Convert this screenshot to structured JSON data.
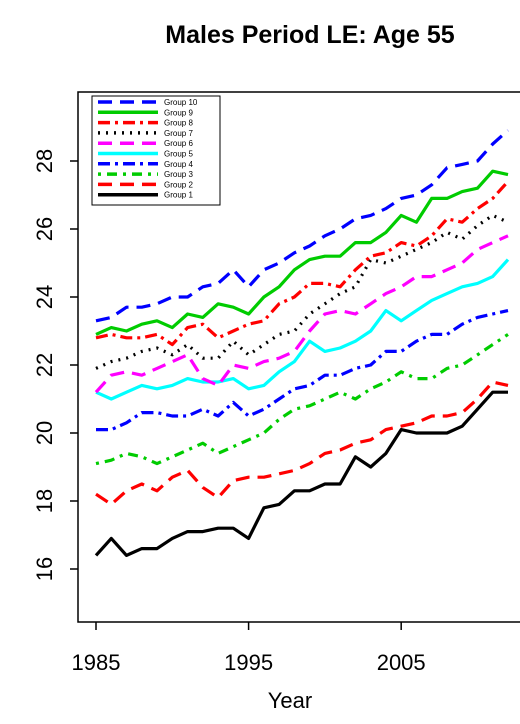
{
  "chart_data": {
    "type": "line",
    "title": "Males Period LE: Age 55",
    "xlabel": "Year",
    "ylabel": "",
    "xlim": [
      1984,
      2012
    ],
    "ylim": [
      14.7,
      29.5
    ],
    "x_ticks": [
      1985,
      1995,
      2005
    ],
    "y_ticks": [
      16,
      18,
      20,
      22,
      24,
      26,
      28
    ],
    "grid": false,
    "legend_position": "top-left",
    "x": [
      1985,
      1986,
      1987,
      1988,
      1989,
      1990,
      1991,
      1992,
      1993,
      1994,
      1995,
      1996,
      1997,
      1998,
      1999,
      2000,
      2001,
      2002,
      2003,
      2004,
      2005,
      2006,
      2007,
      2008,
      2009,
      2010,
      2011,
      2012
    ],
    "series": [
      {
        "name": "Group 10",
        "color": "#0000FF",
        "dash": "long",
        "values": [
          23.3,
          23.4,
          23.7,
          23.7,
          23.8,
          24.0,
          24.0,
          24.3,
          24.4,
          24.8,
          24.3,
          24.8,
          25.0,
          25.3,
          25.5,
          25.8,
          26.0,
          26.3,
          26.4,
          26.6,
          26.9,
          27.0,
          27.3,
          27.8,
          27.9,
          28.0,
          28.5,
          28.9
        ]
      },
      {
        "name": "Group 9",
        "color": "#00CC00",
        "dash": "solid",
        "values": [
          22.9,
          23.1,
          23.0,
          23.2,
          23.3,
          23.1,
          23.5,
          23.4,
          23.8,
          23.7,
          23.5,
          24.0,
          24.3,
          24.8,
          25.1,
          25.2,
          25.2,
          25.6,
          25.6,
          25.9,
          26.4,
          26.2,
          26.9,
          26.9,
          27.1,
          27.2,
          27.7,
          27.6
        ]
      },
      {
        "name": "Group 8",
        "color": "#FF0000",
        "dash": "dashdot",
        "values": [
          22.8,
          22.9,
          22.8,
          22.8,
          22.9,
          22.6,
          23.1,
          23.2,
          22.8,
          23.0,
          23.2,
          23.3,
          23.8,
          24.0,
          24.4,
          24.4,
          24.3,
          24.8,
          25.2,
          25.3,
          25.6,
          25.5,
          25.8,
          26.3,
          26.2,
          26.6,
          26.9,
          27.4
        ]
      },
      {
        "name": "Group 7",
        "color": "#000000",
        "dash": "dot",
        "values": [
          21.9,
          22.1,
          22.2,
          22.4,
          22.5,
          22.3,
          22.6,
          22.2,
          22.2,
          22.7,
          22.3,
          22.6,
          22.9,
          23.0,
          23.5,
          23.8,
          24.1,
          24.3,
          25.1,
          25.0,
          25.2,
          25.4,
          25.6,
          25.9,
          25.7,
          26.1,
          26.4,
          26.2
        ]
      },
      {
        "name": "Group 6",
        "color": "#FF00FF",
        "dash": "long",
        "values": [
          21.2,
          21.7,
          21.8,
          21.7,
          21.9,
          22.1,
          22.3,
          21.6,
          21.4,
          22.0,
          21.9,
          22.1,
          22.2,
          22.4,
          23.0,
          23.5,
          23.6,
          23.5,
          23.8,
          24.1,
          24.3,
          24.6,
          24.6,
          24.8,
          25.0,
          25.4,
          25.6,
          25.8
        ]
      },
      {
        "name": "Group 5",
        "color": "#00FFFF",
        "dash": "solid",
        "values": [
          21.2,
          21.0,
          21.2,
          21.4,
          21.3,
          21.4,
          21.6,
          21.5,
          21.5,
          21.6,
          21.3,
          21.4,
          21.8,
          22.1,
          22.7,
          22.4,
          22.5,
          22.7,
          23.0,
          23.6,
          23.3,
          23.6,
          23.9,
          24.1,
          24.3,
          24.4,
          24.6,
          25.1
        ]
      },
      {
        "name": "Group 4",
        "color": "#0000FF",
        "dash": "dashdot",
        "values": [
          20.1,
          20.1,
          20.3,
          20.6,
          20.6,
          20.5,
          20.5,
          20.7,
          20.5,
          20.9,
          20.5,
          20.7,
          21.0,
          21.3,
          21.4,
          21.7,
          21.7,
          21.9,
          22.0,
          22.4,
          22.4,
          22.7,
          22.9,
          22.9,
          23.2,
          23.4,
          23.5,
          23.6
        ]
      },
      {
        "name": "Group 3",
        "color": "#00CC00",
        "dash": "dotdash",
        "values": [
          19.1,
          19.2,
          19.4,
          19.3,
          19.1,
          19.3,
          19.5,
          19.7,
          19.4,
          19.6,
          19.8,
          20.0,
          20.4,
          20.7,
          20.8,
          21.0,
          21.2,
          21.0,
          21.3,
          21.5,
          21.8,
          21.6,
          21.6,
          21.9,
          22.0,
          22.3,
          22.6,
          22.9
        ]
      },
      {
        "name": "Group 2",
        "color": "#FF0000",
        "dash": "long",
        "values": [
          18.2,
          17.9,
          18.3,
          18.5,
          18.3,
          18.7,
          18.9,
          18.4,
          18.1,
          18.6,
          18.7,
          18.7,
          18.8,
          18.9,
          19.1,
          19.4,
          19.5,
          19.7,
          19.8,
          20.1,
          20.2,
          20.3,
          20.5,
          20.5,
          20.6,
          21.0,
          21.5,
          21.4
        ]
      },
      {
        "name": "Group 1",
        "color": "#000000",
        "dash": "solid",
        "values": [
          16.4,
          16.9,
          16.4,
          16.6,
          16.6,
          16.9,
          17.1,
          17.1,
          17.2,
          17.2,
          16.9,
          17.8,
          17.9,
          18.3,
          18.3,
          18.5,
          18.5,
          19.3,
          19.0,
          19.4,
          20.1,
          20.0,
          20.0,
          20.0,
          20.2,
          20.7,
          21.2,
          21.2
        ]
      }
    ]
  }
}
